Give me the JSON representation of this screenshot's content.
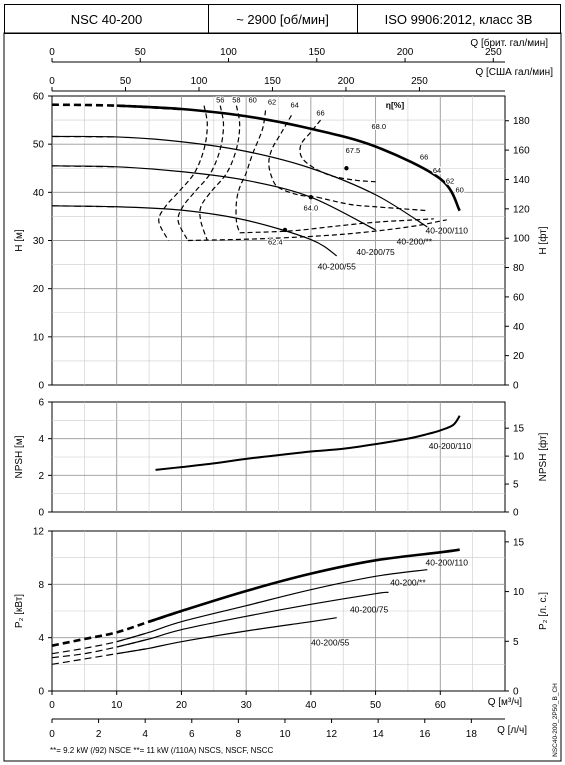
{
  "header": {
    "model": "NSC 40-200",
    "speed": "~ 2900 [об/мин]",
    "standard": "ISO 9906:2012, класс 3B"
  },
  "axes": {
    "q_brit": {
      "label": "Q [брит. гал/мин]",
      "ticks": [
        "0",
        "50",
        "100",
        "150",
        "200",
        "250"
      ],
      "values": [
        0,
        50,
        100,
        150,
        200,
        250
      ]
    },
    "q_usa": {
      "label": "Q [США гал/мин]",
      "ticks": [
        "0",
        "50",
        "100",
        "150",
        "200",
        "250"
      ],
      "values": [
        0,
        50,
        100,
        150,
        200,
        250
      ]
    },
    "q_m3h": {
      "label": "Q [м³/ч]",
      "ticks": [
        "0",
        "10",
        "20",
        "30",
        "40",
        "50",
        "60"
      ],
      "values": [
        0,
        10,
        20,
        30,
        40,
        50,
        60
      ]
    },
    "q_ls": {
      "label": "Q [л/ч]",
      "ticks": [
        "0",
        "2",
        "4",
        "6",
        "8",
        "10",
        "12",
        "14",
        "16",
        "18"
      ],
      "values": [
        0,
        2,
        4,
        6,
        8,
        10,
        12,
        14,
        16,
        18
      ]
    },
    "h_m": {
      "label": "H [м]",
      "ticks": [
        "0",
        "10",
        "20",
        "30",
        "40",
        "50",
        "60"
      ],
      "values": [
        0,
        10,
        20,
        30,
        40,
        50,
        60
      ]
    },
    "h_ft": {
      "label": "H [фт]",
      "ticks": [
        "0",
        "20",
        "40",
        "60",
        "80",
        "100",
        "120",
        "140",
        "160",
        "180"
      ],
      "values": [
        0,
        20,
        40,
        60,
        80,
        100,
        120,
        140,
        160,
        180
      ]
    },
    "npsh_m": {
      "label": "NPSH [м]",
      "ticks": [
        "0",
        "2",
        "4",
        "6"
      ],
      "values": [
        0,
        2,
        4,
        6
      ]
    },
    "npsh_ft": {
      "label": "NPSH [фт]",
      "ticks": [
        "0",
        "5",
        "10",
        "15"
      ],
      "values": [
        0,
        5,
        10,
        15
      ]
    },
    "p_kw": {
      "label": "P₂ [кВт]",
      "ticks": [
        "0",
        "4",
        "8",
        "12"
      ],
      "values": [
        0,
        4,
        8,
        12
      ]
    },
    "p_hp": {
      "label": "P₂ [л. с.]",
      "ticks": [
        "0",
        "5",
        "10",
        "15"
      ],
      "values": [
        0,
        5,
        10,
        15
      ]
    }
  },
  "footnote": "**= 9.2 kW (/92) NSCE  **= 11 kW (/110A) NSCS, NSCF, NSCC",
  "side_code": "NSC40-200_2P50_B_CH",
  "eta_title": "η[%]",
  "chart_data": [
    {
      "type": "line",
      "title": "H",
      "xlabel": "Q [м³/ч]",
      "ylabel": "H [м]",
      "xlim": [
        0,
        70
      ],
      "ylim": [
        0,
        60
      ],
      "series": [
        {
          "name": "40-200/110",
          "x": [
            0,
            10,
            20,
            30,
            40,
            50,
            60,
            63
          ],
          "y": [
            58.2,
            58,
            57.3,
            55.8,
            53.2,
            49.5,
            42.8,
            36.2
          ],
          "dashed_until": 13,
          "label_pos": [
            61,
            31.5
          ]
        },
        {
          "name": "40-200/**",
          "x": [
            0,
            10,
            20,
            30,
            40,
            50,
            58
          ],
          "y": [
            51.6,
            51.5,
            50.5,
            48.5,
            45,
            39.5,
            32.8
          ],
          "dashed_until": 7,
          "label_pos": [
            56,
            29.2
          ]
        },
        {
          "name": "40-200/75",
          "x": [
            0,
            10,
            20,
            30,
            40,
            50
          ],
          "y": [
            45.5,
            45.3,
            44.3,
            42.5,
            39,
            32.2
          ],
          "dashed_until": 7,
          "label_pos": [
            50,
            27
          ]
        },
        {
          "name": "40-200/55",
          "x": [
            0,
            10,
            20,
            30,
            40,
            44
          ],
          "y": [
            37.2,
            37,
            36.3,
            34.2,
            30.2,
            26.8
          ],
          "dashed_until": 7,
          "label_pos": [
            44,
            24
          ]
        }
      ],
      "efficiency_curves": [
        {
          "label": "56",
          "x": [
            23.5,
            24,
            23.5,
            22,
            19.5,
            17.5,
            16.5,
            18
          ],
          "y": [
            58,
            54,
            49,
            44,
            40,
            37,
            34,
            30
          ]
        },
        {
          "label": "58",
          "x": [
            26,
            26.5,
            26,
            24.5,
            22,
            20.2,
            19.5,
            21
          ],
          "y": [
            58,
            54,
            49,
            44,
            40,
            37,
            34,
            30
          ]
        },
        {
          "label": "60",
          "x": [
            28.5,
            29,
            28.5,
            27,
            24.5,
            23,
            23,
            24
          ],
          "y": [
            58,
            54,
            49,
            44,
            40,
            37,
            34,
            30
          ]
        },
        {
          "label": "62",
          "x": [
            33,
            32.5,
            31,
            30,
            29,
            28.5,
            28.5,
            29
          ],
          "y": [
            57,
            53,
            48,
            44,
            41,
            38,
            34,
            31.6
          ]
        },
        {
          "label": "64",
          "x": [
            37,
            35.5,
            34,
            33.5,
            34,
            35,
            38,
            41
          ],
          "y": [
            56,
            52.5,
            49,
            46,
            43,
            41,
            39.5,
            39
          ]
        },
        {
          "label": "66",
          "x": [
            41.5,
            40,
            38.5,
            38.5,
            40,
            43,
            47,
            50
          ],
          "y": [
            55,
            52.5,
            50,
            47.5,
            45.5,
            43.5,
            42.5,
            42.2
          ]
        },
        {
          "label": "64",
          "x": [
            41,
            46,
            50,
            55,
            58
          ],
          "y": [
            39,
            37.5,
            37,
            36.5,
            36.2
          ]
        },
        {
          "label": "62",
          "x": [
            29,
            37,
            44,
            50,
            55,
            59
          ],
          "y": [
            31.6,
            32,
            33,
            33.8,
            34.2,
            34.5
          ]
        },
        {
          "label": "60",
          "x": [
            21,
            33,
            45,
            55,
            61
          ],
          "y": [
            30,
            30.4,
            31.3,
            32.8,
            34.3
          ]
        }
      ],
      "efficiency_labels": [
        {
          "text": "56",
          "x": 26,
          "y": 58.6
        },
        {
          "text": "58",
          "x": 28.5,
          "y": 58.6
        },
        {
          "text": "60",
          "x": 31,
          "y": 58.6
        },
        {
          "text": "62",
          "x": 34,
          "y": 58.2
        },
        {
          "text": "64",
          "x": 37.5,
          "y": 57.6
        },
        {
          "text": "66",
          "x": 41.5,
          "y": 56
        },
        {
          "text": "68.0",
          "x": 50.5,
          "y": 53.2
        },
        {
          "text": "67.5",
          "x": 46.5,
          "y": 48.2
        },
        {
          "text": "66",
          "x": 57.5,
          "y": 46.8
        },
        {
          "text": "64",
          "x": 59.5,
          "y": 44
        },
        {
          "text": "62",
          "x": 61.5,
          "y": 41.8
        },
        {
          "text": "60",
          "x": 63,
          "y": 40
        },
        {
          "text": "64.0",
          "x": 40,
          "y": 36.2
        },
        {
          "text": "62.4",
          "x": 34.5,
          "y": 29.2
        }
      ],
      "efficiency_points": [
        {
          "x": 45.5,
          "y": 45
        },
        {
          "x": 40,
          "y": 39
        },
        {
          "x": 36,
          "y": 32.2
        }
      ]
    },
    {
      "type": "line",
      "title": "NPSH",
      "xlabel": "Q [м³/ч]",
      "ylabel": "NPSH [м]",
      "xlim": [
        0,
        70
      ],
      "ylim": [
        0,
        6
      ],
      "series": [
        {
          "name": "40-200/110",
          "x": [
            16,
            20,
            25,
            30,
            35,
            40,
            45,
            50,
            55,
            58,
            60,
            62,
            63
          ],
          "y": [
            2.3,
            2.45,
            2.65,
            2.9,
            3.1,
            3.3,
            3.45,
            3.7,
            4.0,
            4.25,
            4.45,
            4.75,
            5.25
          ],
          "label_pos": [
            61.5,
            3.45
          ]
        }
      ]
    },
    {
      "type": "line",
      "title": "P2",
      "xlabel": "Q [м³/ч]",
      "ylabel": "P₂ [кВт]",
      "xlim": [
        0,
        70
      ],
      "ylim": [
        0,
        12
      ],
      "series": [
        {
          "name": "40-200/110",
          "x": [
            0,
            5,
            10,
            15,
            20,
            30,
            40,
            50,
            60,
            63
          ],
          "y": [
            3.4,
            3.9,
            4.4,
            5.2,
            6.0,
            7.5,
            8.8,
            9.8,
            10.4,
            10.6
          ],
          "dashed_until": 16,
          "label_pos": [
            61,
            9.4
          ]
        },
        {
          "name": "40-200/**",
          "x": [
            0,
            5,
            10,
            15,
            20,
            30,
            40,
            50,
            58
          ],
          "y": [
            2.8,
            3.2,
            3.7,
            4.4,
            5.2,
            6.4,
            7.6,
            8.6,
            9.1
          ],
          "dashed_until": 11,
          "label_pos": [
            55,
            7.9
          ]
        },
        {
          "name": "40-200/75",
          "x": [
            0,
            5,
            10,
            15,
            20,
            30,
            40,
            50,
            52
          ],
          "y": [
            2.5,
            2.8,
            3.3,
            3.9,
            4.6,
            5.6,
            6.5,
            7.3,
            7.4
          ],
          "dashed_until": 11,
          "label_pos": [
            49,
            5.9
          ]
        },
        {
          "name": "40-200/55",
          "x": [
            0,
            5,
            10,
            15,
            20,
            30,
            40,
            44
          ],
          "y": [
            2.0,
            2.4,
            2.8,
            3.2,
            3.7,
            4.5,
            5.2,
            5.5
          ],
          "dashed_until": 11,
          "label_pos": [
            43,
            3.4
          ]
        }
      ]
    }
  ]
}
